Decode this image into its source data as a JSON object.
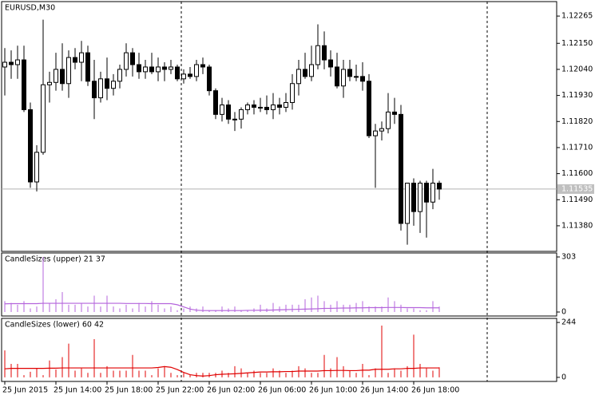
{
  "chart_data": [
    {
      "type": "candlestick",
      "title": "EURUSD,M30",
      "categories": [
        "25 Jun 2015",
        null,
        null,
        null,
        null,
        null,
        null,
        null,
        "25 Jun 14:00",
        null,
        null,
        null,
        null,
        null,
        null,
        null,
        "25 Jun 18:00",
        null,
        null,
        null,
        null,
        null,
        null,
        null,
        "25 Jun 22:00",
        null,
        null,
        null,
        null,
        null,
        null,
        null,
        "26 Jun 02:00",
        null,
        null,
        null,
        null,
        null,
        null,
        null,
        "26 Jun 06:00",
        null,
        null,
        null,
        null,
        null,
        null,
        null,
        "26 Jun 10:00",
        null,
        null,
        null,
        null,
        null,
        null,
        null,
        "26 Jun 14:00",
        null,
        null,
        null,
        null,
        null,
        null,
        null,
        "26 Jun 18:00",
        null,
        null,
        null,
        null
      ],
      "open": [
        1.1205,
        1.1207,
        1.1206,
        1.1208,
        1.1187,
        1.11565,
        1.1169,
        1.11975,
        1.11985,
        1.1204,
        1.1198,
        1.1209,
        1.1207,
        1.1211,
        1.1199,
        1.1192,
        1.12,
        1.1196,
        1.1199,
        1.1204,
        1.1211,
        1.1206,
        1.1203,
        1.1205,
        1.1203,
        1.1205,
        1.1204,
        1.1205,
        1.12,
        1.1202,
        1.1201,
        1.1206,
        1.1205,
        1.1195,
        1.1185,
        1.1189,
        1.1183,
        1.1183,
        1.1187,
        1.1189,
        1.1188,
        1.1188,
        1.1187,
        1.1189,
        1.1188,
        1.119,
        1.1198,
        1.1204,
        1.1201,
        1.1206,
        1.1214,
        1.1208,
        1.1205,
        1.1197,
        1.1204,
        1.1201,
        1.1201,
        1.1199,
        1.1176,
        1.1178,
        1.1179,
        1.1186,
        1.1185,
        1.1139,
        1.1156,
        1.1144,
        1.1156,
        1.1148,
        1.1156
      ],
      "high": [
        1.1213,
        1.1212,
        1.1214,
        1.1214,
        1.119,
        1.1172,
        1.1225,
        1.1203,
        1.1211,
        1.1215,
        1.1212,
        1.1213,
        1.1216,
        1.1214,
        1.1208,
        1.1203,
        1.1209,
        1.1202,
        1.1206,
        1.1215,
        1.1213,
        1.1211,
        1.1208,
        1.1211,
        1.1209,
        1.1207,
        1.1208,
        1.1206,
        1.1204,
        1.1205,
        1.1208,
        1.1209,
        1.1206,
        1.1196,
        1.1192,
        1.1191,
        1.1186,
        1.1188,
        1.119,
        1.1191,
        1.1192,
        1.1193,
        1.1194,
        1.1192,
        1.1194,
        1.1202,
        1.1208,
        1.1211,
        1.1214,
        1.1223,
        1.122,
        1.1212,
        1.1211,
        1.1208,
        1.1208,
        1.1206,
        1.1207,
        1.1202,
        1.1181,
        1.1182,
        1.1194,
        1.1192,
        1.1189,
        1.1156,
        1.1158,
        1.1157,
        1.1157,
        1.1162,
        1.1157
      ],
      "low": [
        1.1193,
        1.12,
        1.12,
        1.1186,
        1.1154,
        1.11525,
        1.1168,
        1.119,
        1.1195,
        1.1195,
        1.1192,
        1.1204,
        1.1199,
        1.1197,
        1.1183,
        1.119,
        1.1191,
        1.1193,
        1.1196,
        1.1201,
        1.1201,
        1.12,
        1.12,
        1.1202,
        1.1199,
        1.1199,
        1.1202,
        1.1199,
        1.1198,
        1.12,
        1.1199,
        1.1202,
        1.1193,
        1.1183,
        1.1182,
        1.1181,
        1.1178,
        1.1179,
        1.1185,
        1.1185,
        1.1186,
        1.1185,
        1.1183,
        1.1185,
        1.1186,
        1.1187,
        1.1193,
        1.12,
        1.1199,
        1.1204,
        1.1204,
        1.1201,
        1.1196,
        1.1192,
        1.1199,
        1.1199,
        1.1195,
        1.1175,
        1.1154,
        1.1174,
        1.1177,
        1.1181,
        1.1136,
        1.113,
        1.1138,
        1.1135,
        1.1133,
        1.1145,
        1.1149
      ],
      "close": [
        1.1207,
        1.1206,
        1.1208,
        1.1187,
        1.11565,
        1.1169,
        1.11975,
        1.11985,
        1.1204,
        1.1198,
        1.1209,
        1.1207,
        1.1211,
        1.1199,
        1.1192,
        1.12,
        1.1196,
        1.1199,
        1.1204,
        1.1211,
        1.1206,
        1.1203,
        1.1205,
        1.1203,
        1.1205,
        1.1204,
        1.1205,
        1.12,
        1.1202,
        1.1201,
        1.1206,
        1.1205,
        1.1195,
        1.1185,
        1.1189,
        1.1183,
        1.1183,
        1.1187,
        1.1189,
        1.1188,
        1.1188,
        1.1187,
        1.1189,
        1.1188,
        1.119,
        1.1198,
        1.1204,
        1.1201,
        1.1206,
        1.1214,
        1.1208,
        1.1205,
        1.1197,
        1.1204,
        1.1201,
        1.1201,
        1.1199,
        1.1176,
        1.1178,
        1.1179,
        1.1186,
        1.1185,
        1.1139,
        1.1156,
        1.1144,
        1.1156,
        1.1148,
        1.1156,
        1.11535
      ],
      "current_price": {
        "value": 1.11535,
        "label": "1.11535"
      },
      "ylim": [
        1.11272,
        1.12326
      ],
      "yticks": [
        {
          "value": 1.12265,
          "label": "1.12265"
        },
        {
          "value": 1.1215,
          "label": "1.12150"
        },
        {
          "value": 1.1204,
          "label": "1.12040"
        },
        {
          "value": 1.1193,
          "label": "1.11930"
        },
        {
          "value": 1.1182,
          "label": "1.11820"
        },
        {
          "value": 1.1171,
          "label": "1.11710"
        },
        {
          "value": 1.116,
          "label": "1.11600"
        },
        {
          "value": 1.1149,
          "label": "1.11490"
        },
        {
          "value": 1.1138,
          "label": "1.11380"
        }
      ],
      "bull_color": "#ffffff",
      "bear_color": "#000000"
    },
    {
      "type": "histogram-line",
      "title": "CandleSizes (upper) 21 37",
      "color": "#b464dc",
      "values": [
        60,
        50,
        40,
        60,
        20,
        30,
        303,
        50,
        70,
        110,
        40,
        40,
        50,
        30,
        90,
        30,
        90,
        30,
        20,
        40,
        20,
        50,
        30,
        60,
        40,
        20,
        30,
        10,
        20,
        30,
        20,
        30,
        10,
        10,
        30,
        20,
        30,
        10,
        10,
        20,
        40,
        20,
        50,
        30,
        40,
        40,
        40,
        70,
        80,
        90,
        60,
        40,
        60,
        40,
        40,
        50,
        60,
        30,
        30,
        30,
        80,
        60,
        40,
        20,
        20,
        10,
        10,
        60,
        30
      ],
      "line": [
        45,
        46,
        46,
        46,
        46,
        46,
        48,
        48,
        48,
        48,
        48,
        48,
        48,
        48,
        48,
        48,
        48,
        48,
        48,
        47,
        47,
        47,
        47,
        46,
        46,
        46,
        46,
        40,
        28,
        16,
        10,
        8,
        8,
        8,
        8,
        8,
        8,
        8,
        9,
        9,
        10,
        10,
        11,
        12,
        13,
        14,
        15,
        16,
        17,
        18,
        20,
        20,
        21,
        22,
        22,
        23,
        23,
        24,
        24,
        24,
        25,
        25,
        25,
        24,
        24,
        24,
        23,
        23,
        23
      ],
      "ylim": [
        -22,
        325
      ],
      "yticks": [
        303,
        0
      ]
    },
    {
      "type": "histogram-line",
      "title": "CandleSizes (lower) 60 42",
      "color": "#e00000",
      "values": [
        120,
        60,
        60,
        10,
        25,
        40,
        10,
        75,
        35,
        90,
        150,
        30,
        40,
        20,
        170,
        20,
        50,
        30,
        30,
        30,
        100,
        30,
        30,
        10,
        40,
        50,
        20,
        10,
        20,
        10,
        20,
        20,
        20,
        20,
        30,
        20,
        50,
        40,
        20,
        30,
        20,
        20,
        40,
        30,
        20,
        30,
        50,
        40,
        20,
        20,
        100,
        40,
        90,
        50,
        30,
        20,
        60,
        10,
        40,
        230,
        20,
        40,
        30,
        50,
        190,
        60,
        40,
        30,
        45
      ],
      "line": [
        38,
        40,
        40,
        40,
        40,
        40,
        40,
        41,
        41,
        42,
        42,
        42,
        42,
        42,
        42,
        42,
        42,
        42,
        42,
        42,
        42,
        42,
        42,
        42,
        44,
        48,
        45,
        35,
        22,
        12,
        8,
        6,
        8,
        12,
        14,
        15,
        16,
        18,
        20,
        22,
        24,
        24,
        25,
        25,
        26,
        26,
        28,
        28,
        28,
        28,
        30,
        30,
        31,
        31,
        30,
        30,
        32,
        32,
        36,
        36,
        36,
        38,
        38,
        40,
        40,
        42,
        42,
        42,
        42
      ],
      "ylim": [
        -18,
        262
      ],
      "yticks": [
        244,
        0
      ]
    }
  ]
}
